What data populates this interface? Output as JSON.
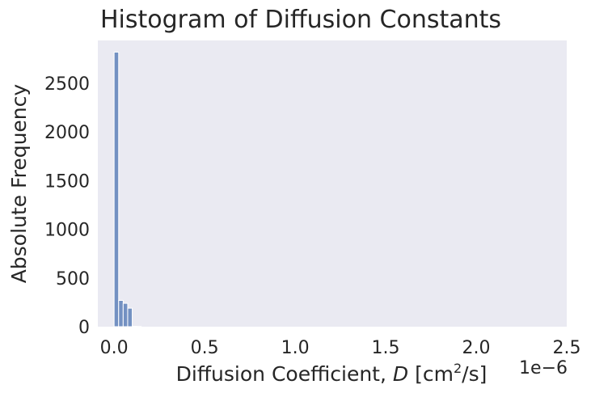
{
  "chart_data": {
    "type": "bar",
    "title": "Histogram of Diffusion Constants",
    "xlabel": {
      "prefix": "Diffusion Coefficient, ",
      "var": "D",
      "unit_open": " [cm",
      "unit_sup": "2",
      "unit_close": "/s]"
    },
    "ylabel": "Absolute Frequency",
    "x_offset_label": "1e−6",
    "xlim": [
      -0.09,
      2.5
    ],
    "ylim": [
      0,
      2940
    ],
    "x_ticks": [
      {
        "value": 0.0,
        "label": "0.0"
      },
      {
        "value": 0.5,
        "label": "0.5"
      },
      {
        "value": 1.0,
        "label": "1.0"
      },
      {
        "value": 1.5,
        "label": "1.5"
      },
      {
        "value": 2.0,
        "label": "2.0"
      },
      {
        "value": 2.5,
        "label": "2.5"
      }
    ],
    "y_ticks": [
      {
        "value": 0,
        "label": "0"
      },
      {
        "value": 500,
        "label": "500"
      },
      {
        "value": 1000,
        "label": "1000"
      },
      {
        "value": 1500,
        "label": "1500"
      },
      {
        "value": 2000,
        "label": "2000"
      },
      {
        "value": 2500,
        "label": "2500"
      }
    ],
    "bins": [
      {
        "x0": 0.0,
        "x1": 0.025,
        "value": 2820
      },
      {
        "x0": 0.025,
        "x1": 0.05,
        "value": 270
      },
      {
        "x0": 0.05,
        "x1": 0.075,
        "value": 240
      },
      {
        "x0": 0.075,
        "x1": 0.1,
        "value": 190
      },
      {
        "x0": 0.1,
        "x1": 0.125,
        "value": 4
      },
      {
        "x0": 0.125,
        "x1": 0.15,
        "value": 2
      }
    ],
    "grid": false,
    "colors": {
      "plot_background": "#eaeaf2",
      "bar_fill": "#7391c2",
      "bar_edge": "#ffffff",
      "text": "#262626"
    }
  }
}
